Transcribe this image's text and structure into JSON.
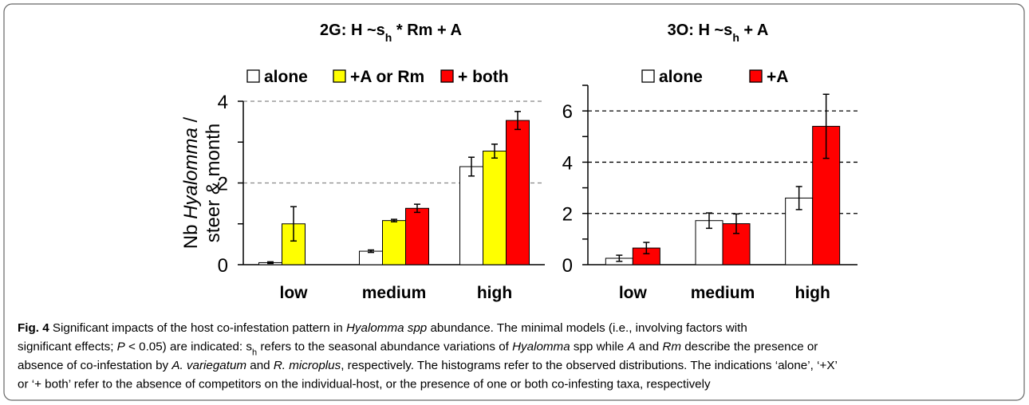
{
  "chart_data": [
    {
      "type": "bar",
      "title": [
        "2G: H ~s",
        "h",
        " * Rm + A"
      ],
      "ylabel": [
        "Nb ",
        "Hyalomma",
        " /"
      ],
      "ylabel2": "steer & month",
      "categories": [
        "low",
        "medium",
        "high"
      ],
      "series": [
        {
          "name": "alone",
          "color": "#ffffff",
          "values": [
            0.05,
            0.33,
            2.4
          ],
          "errors": [
            0.02,
            0.03,
            0.23
          ]
        },
        {
          "name": "+A or Rm",
          "color": "#ffff00",
          "values": [
            1.0,
            1.08,
            2.78
          ],
          "errors": [
            0.42,
            0.03,
            0.17
          ]
        },
        {
          "name": "+ both",
          "color": "#ff0000",
          "values": [
            null,
            1.38,
            3.53
          ],
          "errors": [
            null,
            0.1,
            0.22
          ]
        }
      ],
      "ylim": [
        0,
        4
      ],
      "yticks": [
        0,
        2,
        4
      ],
      "yticks_minor": [
        1,
        3
      ],
      "grid": true,
      "grid_color": "#888888"
    },
    {
      "type": "bar",
      "title": [
        "3O: H ~s",
        "h",
        " + A"
      ],
      "categories": [
        "low",
        "medium",
        "high"
      ],
      "series": [
        {
          "name": "alone",
          "color": "#ffffff",
          "values": [
            0.25,
            1.72,
            2.6
          ],
          "errors": [
            0.12,
            0.3,
            0.45
          ]
        },
        {
          "name": "+A",
          "color": "#ff0000",
          "values": [
            0.65,
            1.6,
            5.4
          ],
          "errors": [
            0.22,
            0.38,
            1.25
          ]
        }
      ],
      "ylim": [
        0,
        7
      ],
      "yticks": [
        0,
        2,
        4,
        6
      ],
      "yticks_minor": [
        1,
        3,
        5,
        7
      ],
      "grid": true,
      "grid_color": "#000000"
    }
  ],
  "caption": [
    [
      {
        "t": "Fig. 4",
        "s": "b"
      },
      {
        "t": " Significant impacts of the host co-infestation pattern in "
      },
      {
        "t": "Hyalomma spp",
        "s": "i"
      },
      {
        "t": " abundance. The minimal models (i.e., involving factors with"
      }
    ],
    [
      {
        "t": "significant effects; "
      },
      {
        "t": "P",
        "s": "i"
      },
      {
        "t": " < 0.05) are indicated: s"
      },
      {
        "t": "h",
        "s": "sub"
      },
      {
        "t": " refers to the seasonal abundance variations of "
      },
      {
        "t": "Hyalomma",
        "s": "i"
      },
      {
        "t": " spp while "
      },
      {
        "t": "A",
        "s": "i"
      },
      {
        "t": " and "
      },
      {
        "t": "Rm",
        "s": "i"
      },
      {
        "t": " describe the presence or"
      }
    ],
    [
      {
        "t": "absence of co-infestation by "
      },
      {
        "t": "A. variegatum",
        "s": "i"
      },
      {
        "t": " and "
      },
      {
        "t": "R. microplus",
        "s": "i"
      },
      {
        "t": ", respectively. The histograms refer to the observed distributions. The indications ‘alone’, ‘+X’"
      }
    ],
    [
      {
        "t": "or ‘+ both’ refer to the absence of competitors on the individual-host, or the presence of one or both co-infesting taxa, respectively"
      }
    ]
  ]
}
